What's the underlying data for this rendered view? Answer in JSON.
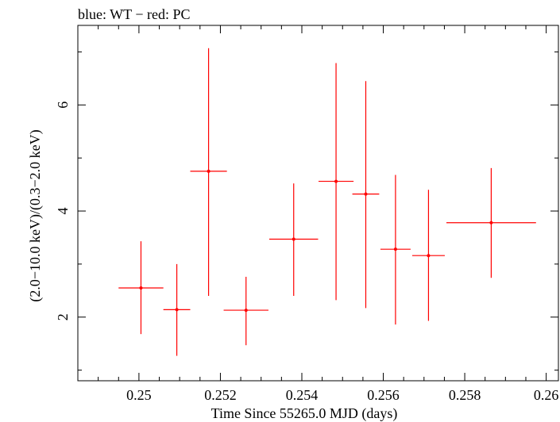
{
  "chart_data": {
    "type": "scatter",
    "title": "blue: WT − red: PC",
    "xlabel": "Time Since 55265.0 MJD (days)",
    "ylabel": "(2.0−10.0 keV)/(0.3−2.0 keV)",
    "xlim": [
      0.2485,
      0.2603
    ],
    "ylim": [
      0.8,
      7.5
    ],
    "x_ticks": [
      0.25,
      0.252,
      0.254,
      0.256,
      0.258,
      0.26
    ],
    "x_tick_labels": [
      "0.25",
      "0.252",
      "0.254",
      "0.256",
      "0.258",
      "0.26"
    ],
    "y_ticks": [
      2,
      4,
      6
    ],
    "y_tick_labels": [
      "2",
      "4",
      "6"
    ],
    "series": [
      {
        "name": "PC",
        "color": "#ff0000",
        "points": [
          {
            "x": 0.25005,
            "xerr": 0.00055,
            "y": 2.55,
            "ylo": 1.68,
            "yhi": 3.43
          },
          {
            "x": 0.25093,
            "xerr": 0.00033,
            "y": 2.14,
            "ylo": 1.27,
            "yhi": 3.0
          },
          {
            "x": 0.25171,
            "xerr": 0.00045,
            "y": 4.75,
            "ylo": 2.4,
            "yhi": 7.07
          },
          {
            "x": 0.25263,
            "xerr": 0.00055,
            "y": 2.13,
            "ylo": 1.47,
            "yhi": 2.76
          },
          {
            "x": 0.2538,
            "xerr": 0.0006,
            "y": 3.47,
            "ylo": 2.4,
            "yhi": 4.52
          },
          {
            "x": 0.25484,
            "xerr": 0.00043,
            "y": 4.56,
            "ylo": 2.32,
            "yhi": 6.79
          },
          {
            "x": 0.25557,
            "xerr": 0.00033,
            "y": 4.32,
            "ylo": 2.17,
            "yhi": 6.45
          },
          {
            "x": 0.2563,
            "xerr": 0.00037,
            "y": 3.28,
            "ylo": 1.86,
            "yhi": 4.68
          },
          {
            "x": 0.25711,
            "xerr": 0.0004,
            "y": 3.16,
            "ylo": 1.93,
            "yhi": 4.4
          },
          {
            "x": 0.25865,
            "xerr": 0.0011,
            "y": 3.78,
            "ylo": 2.74,
            "yhi": 4.81
          }
        ]
      }
    ]
  }
}
